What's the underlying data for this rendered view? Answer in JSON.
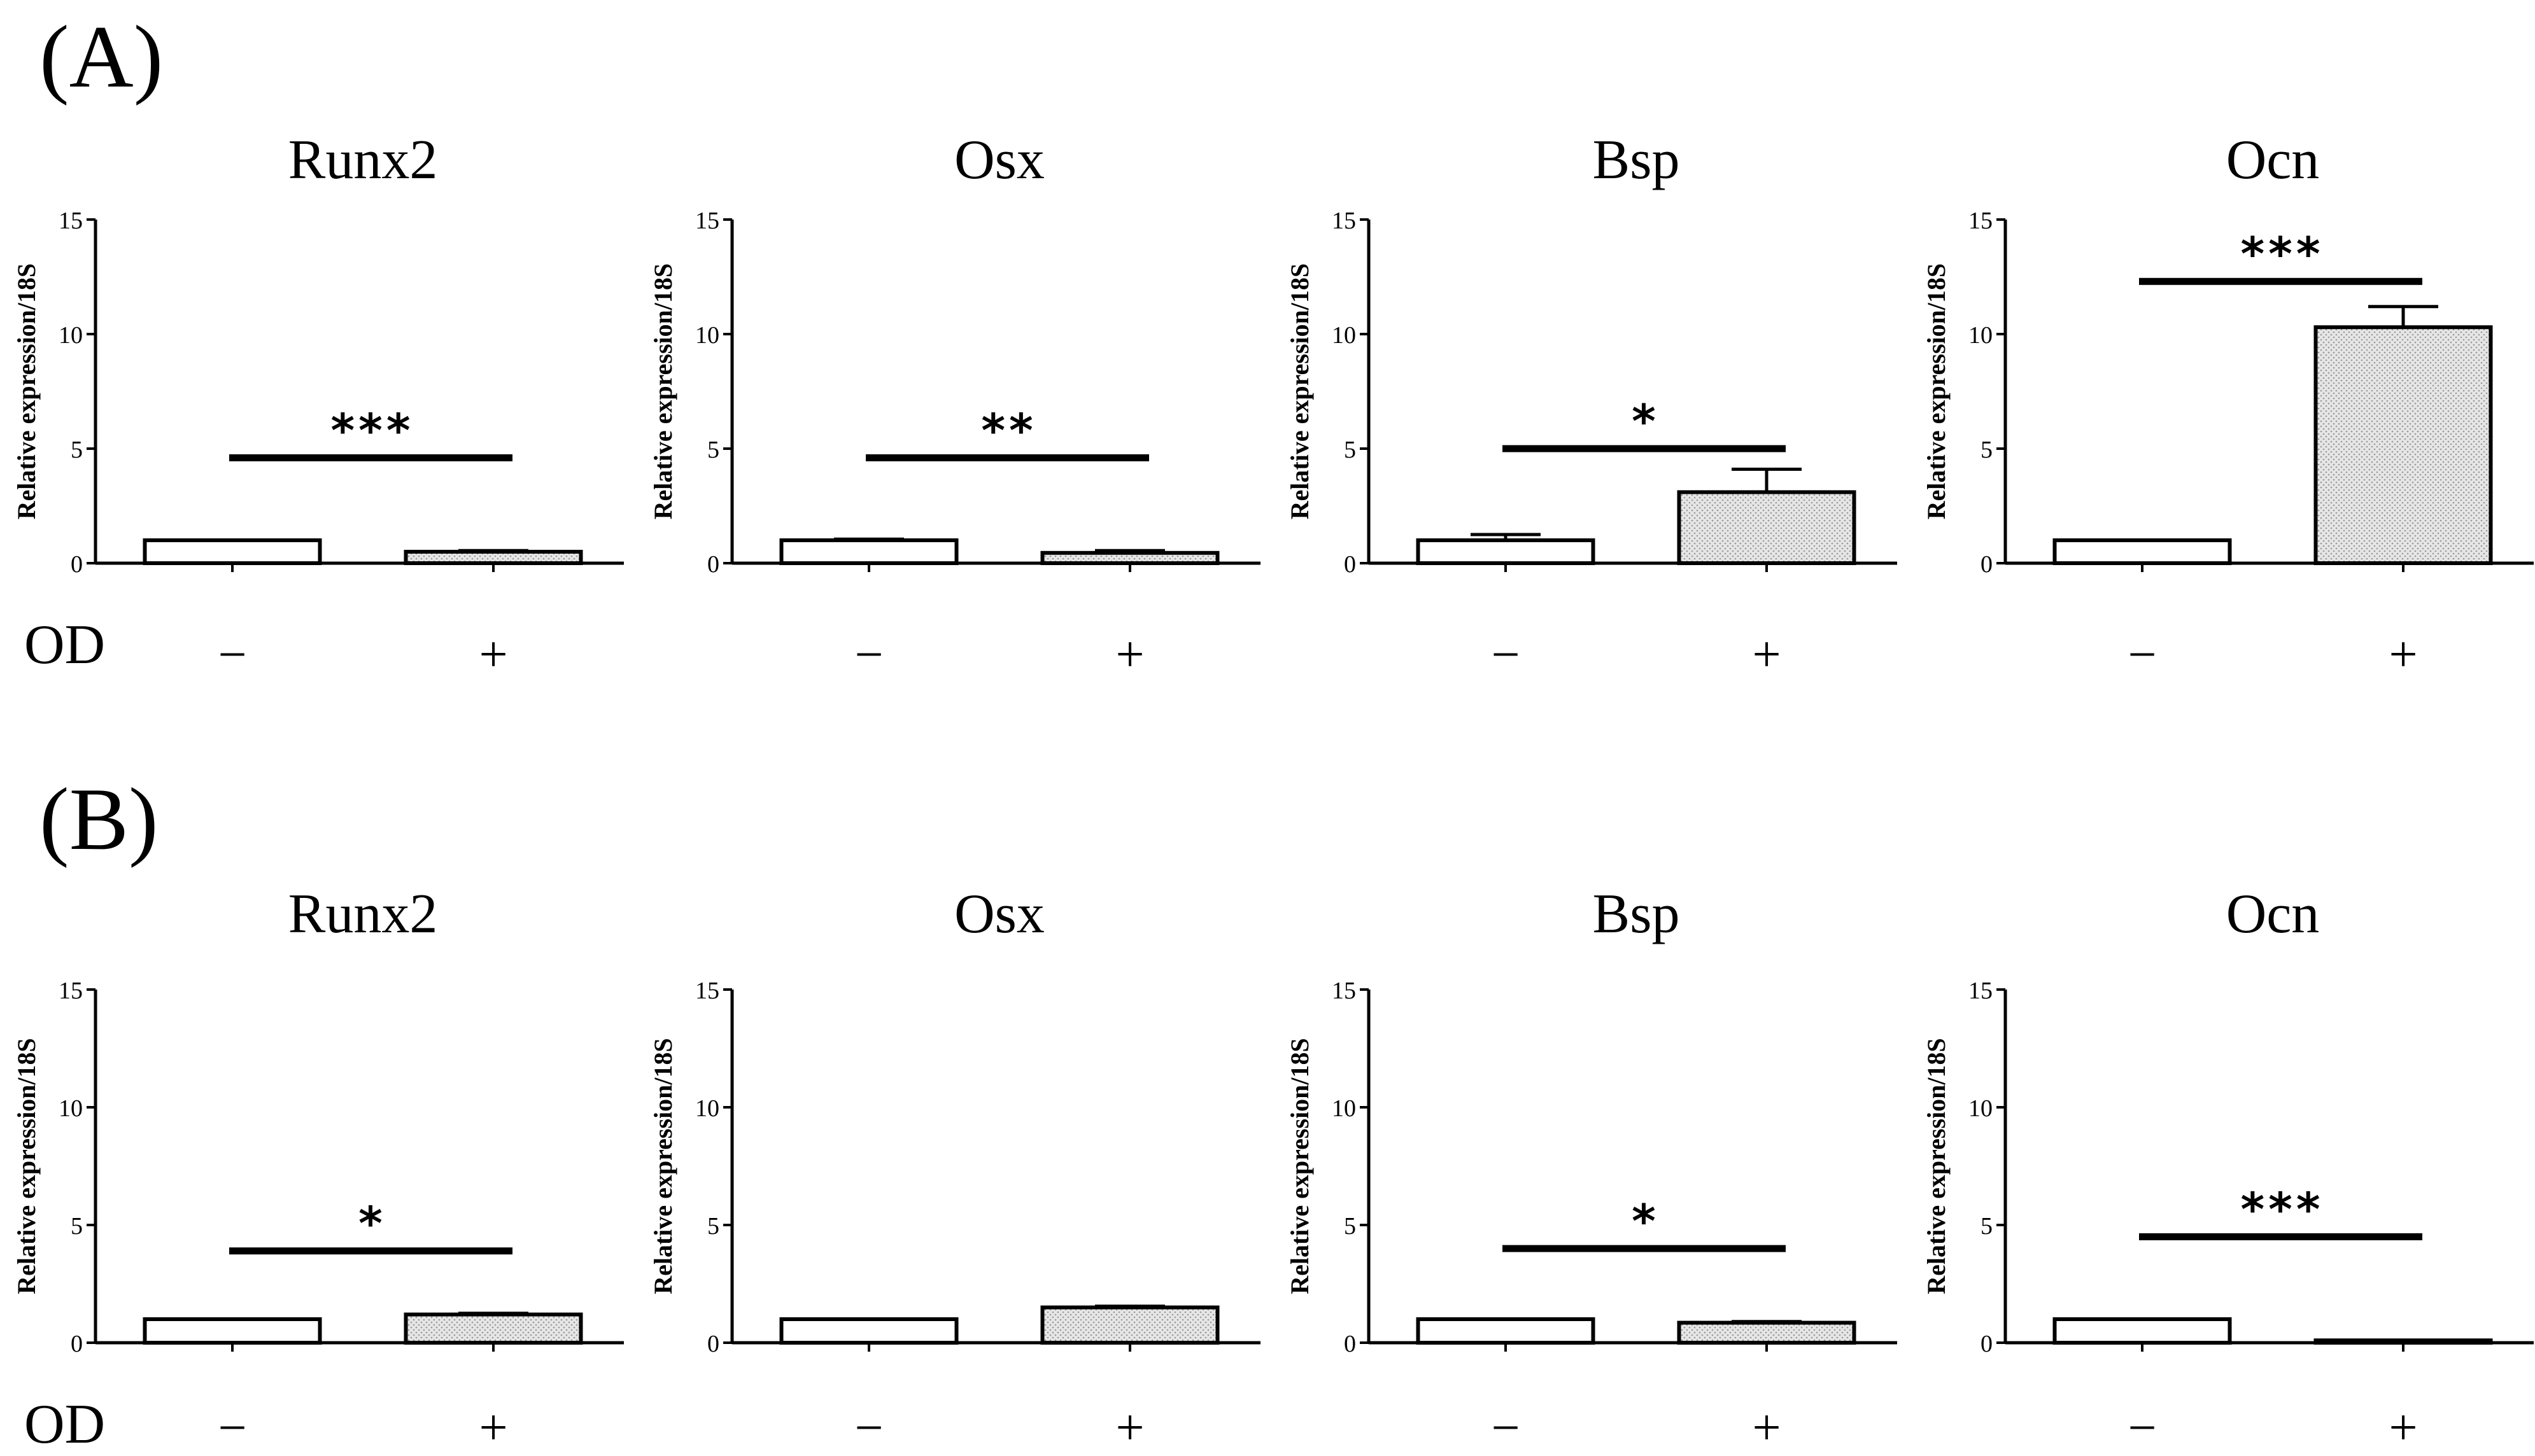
{
  "panels": [
    {
      "label": "(A)",
      "od_label": "OD"
    },
    {
      "label": "(B)",
      "od_label": "OD"
    }
  ],
  "colors": {
    "axis": "#000000",
    "bar_minus": "#ffffff",
    "bar_plus": "#e4e4e4",
    "stroke": "#000000"
  },
  "chart_data": [
    {
      "panel": "A",
      "type": "bar",
      "title": "Runx2",
      "ylabel": "Relative expression/18S",
      "ylim": [
        0,
        15
      ],
      "yticks": [
        0,
        5,
        10,
        15
      ],
      "categories": [
        "−",
        "+"
      ],
      "values": [
        1.0,
        0.5
      ],
      "errors": [
        0.0,
        0.05
      ],
      "significance": "***",
      "sig_level": 4.6
    },
    {
      "panel": "A",
      "type": "bar",
      "title": "Osx",
      "ylabel": "Relative expression/18S",
      "ylim": [
        0,
        15
      ],
      "yticks": [
        0,
        5,
        10,
        15
      ],
      "categories": [
        "−",
        "+"
      ],
      "values": [
        1.0,
        0.45
      ],
      "errors": [
        0.05,
        0.1
      ],
      "significance": "**",
      "sig_level": 4.6
    },
    {
      "panel": "A",
      "type": "bar",
      "title": "Bsp",
      "ylabel": "Relative expression/18S",
      "ylim": [
        0,
        15
      ],
      "yticks": [
        0,
        5,
        10,
        15
      ],
      "categories": [
        "−",
        "+"
      ],
      "values": [
        1.0,
        3.1
      ],
      "errors": [
        0.25,
        1.0
      ],
      "significance": "*",
      "sig_level": 5.0
    },
    {
      "panel": "A",
      "type": "bar",
      "title": "Ocn",
      "ylabel": "Relative expression/18S",
      "ylim": [
        0,
        15
      ],
      "yticks": [
        0,
        5,
        10,
        15
      ],
      "categories": [
        "−",
        "+"
      ],
      "values": [
        1.0,
        10.3
      ],
      "errors": [
        0.0,
        0.9
      ],
      "significance": "***",
      "sig_level": 12.3
    },
    {
      "panel": "B",
      "type": "bar",
      "title": "Runx2",
      "ylabel": "Relative expression/18S",
      "ylim": [
        0,
        15
      ],
      "yticks": [
        0,
        5,
        10,
        15
      ],
      "categories": [
        "−",
        "+"
      ],
      "values": [
        1.0,
        1.2
      ],
      "errors": [
        0.0,
        0.05
      ],
      "significance": "*",
      "sig_level": 3.9
    },
    {
      "panel": "B",
      "type": "bar",
      "title": "Osx",
      "ylabel": "Relative expression/18S",
      "ylim": [
        0,
        15
      ],
      "yticks": [
        0,
        5,
        10,
        15
      ],
      "categories": [
        "−",
        "+"
      ],
      "values": [
        1.0,
        1.5
      ],
      "errors": [
        0.0,
        0.05
      ],
      "significance": "",
      "sig_level": null
    },
    {
      "panel": "B",
      "type": "bar",
      "title": "Bsp",
      "ylabel": "Relative expression/18S",
      "ylim": [
        0,
        15
      ],
      "yticks": [
        0,
        5,
        10,
        15
      ],
      "categories": [
        "−",
        "+"
      ],
      "values": [
        1.0,
        0.85
      ],
      "errors": [
        0.0,
        0.05
      ],
      "significance": "*",
      "sig_level": 4.0
    },
    {
      "panel": "B",
      "type": "bar",
      "title": "Ocn",
      "ylabel": "Relative expression/18S",
      "ylim": [
        0,
        15
      ],
      "yticks": [
        0,
        5,
        10,
        15
      ],
      "categories": [
        "−",
        "+"
      ],
      "values": [
        1.0,
        0.1
      ],
      "errors": [
        0.0,
        0.0
      ],
      "significance": "***",
      "sig_level": 4.5
    }
  ]
}
